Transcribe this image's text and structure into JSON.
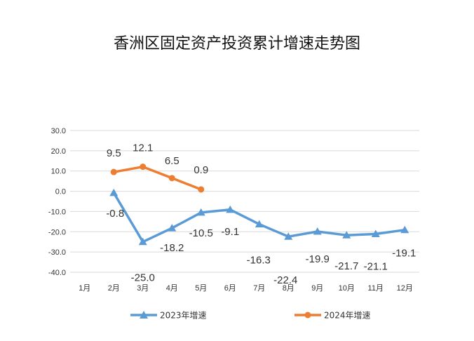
{
  "chart_data": {
    "type": "line",
    "title": "香洲区固定资产投资累计增速走势图",
    "categories": [
      "1月",
      "2月",
      "3月",
      "4月",
      "5月",
      "6月",
      "7月",
      "8月",
      "9月",
      "10月",
      "11月",
      "12月"
    ],
    "y_ticks": [
      "30.0",
      "20.0",
      "10.0",
      "0.0",
      "-10.0",
      "-20.0",
      "-30.0",
      "-40.0"
    ],
    "ylim": [
      -40,
      30
    ],
    "grid": true,
    "legend_position": "bottom",
    "series": [
      {
        "name": "2023年增速",
        "color": "#5B9BD5",
        "marker": "triangle",
        "values": [
          null,
          -0.8,
          -25.0,
          -18.2,
          -10.5,
          -9.1,
          -16.3,
          -22.4,
          -19.9,
          -21.7,
          -21.1,
          -19.1
        ],
        "labels": [
          "",
          "-0.8",
          "-25.0",
          "-18.2",
          "-10.5",
          "-9.1",
          "-16.3",
          "-22.4",
          "-19.9",
          "-21.7",
          "-21.1",
          "-19.1"
        ]
      },
      {
        "name": "2024年增速",
        "color": "#ED7D31",
        "marker": "circle",
        "values": [
          null,
          9.5,
          12.1,
          6.5,
          0.9,
          null,
          null,
          null,
          null,
          null,
          null,
          null
        ],
        "labels": [
          "",
          "9.5",
          "12.1",
          "6.5",
          "0.9",
          "",
          "",
          "",
          "",
          "",
          "",
          ""
        ]
      }
    ]
  }
}
